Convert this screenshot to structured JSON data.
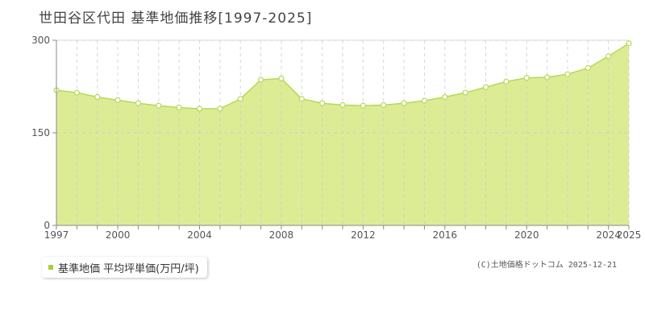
{
  "chart_data": {
    "type": "area",
    "title": "世田谷区代田 基準地価推移[1997-2025]",
    "xlabel": "",
    "ylabel": "",
    "x": [
      1997,
      1998,
      1999,
      2000,
      2001,
      2002,
      2003,
      2004,
      2005,
      2006,
      2007,
      2008,
      2009,
      2010,
      2011,
      2012,
      2013,
      2014,
      2015,
      2016,
      2017,
      2018,
      2019,
      2020,
      2021,
      2022,
      2023,
      2024,
      2025
    ],
    "series": [
      {
        "name": "基準地価 平均坪単価(万円/坪)",
        "values": [
          219,
          215,
          208,
          203,
          198,
          194,
          191,
          189,
          189,
          205,
          236,
          238,
          205,
          198,
          195,
          194,
          195,
          198,
          202,
          208,
          215,
          224,
          233,
          239,
          240,
          245,
          255,
          274,
          295
        ]
      }
    ],
    "x_ticks": [
      "1997",
      "2000",
      "2004",
      "2008",
      "2012",
      "2016",
      "2020",
      "2024",
      "2025"
    ],
    "y_ticks": [
      "0",
      "150",
      "300"
    ],
    "ylim": [
      0,
      300
    ],
    "xlim": [
      1997,
      2025
    ],
    "grid": true,
    "legend_position": "bottom-left",
    "colors": {
      "fill": "#dcec94",
      "line": "#b5d957",
      "marker": "#a8cc3a",
      "grid": "#cccccc"
    }
  },
  "copyright": "(C)土地価格ドットコム 2025-12-21"
}
